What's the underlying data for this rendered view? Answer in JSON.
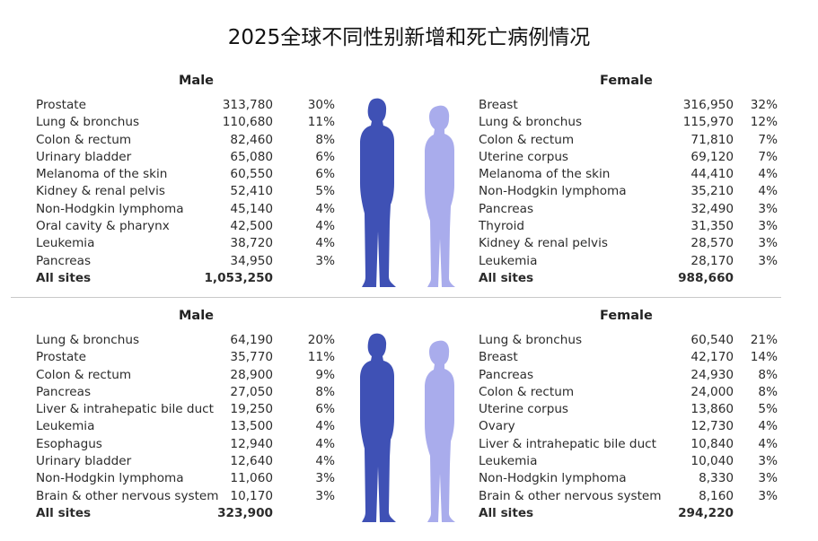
{
  "title": "2025全球不同性别新增和死亡病例情况",
  "colors": {
    "male": "#3f51b5",
    "female": "#a9acec"
  },
  "chart_data": [
    {
      "type": "table",
      "male": {
        "header": "Male",
        "rows": [
          {
            "site": "Prostate",
            "count": "313,780",
            "pct": "30%"
          },
          {
            "site": "Lung & bronchus",
            "count": "110,680",
            "pct": "11%"
          },
          {
            "site": "Colon & rectum",
            "count": "82,460",
            "pct": "8%"
          },
          {
            "site": "Urinary bladder",
            "count": "65,080",
            "pct": "6%"
          },
          {
            "site": "Melanoma of the skin",
            "count": "60,550",
            "pct": "6%"
          },
          {
            "site": "Kidney & renal pelvis",
            "count": "52,410",
            "pct": "5%"
          },
          {
            "site": "Non-Hodgkin lymphoma",
            "count": "45,140",
            "pct": "4%"
          },
          {
            "site": "Oral cavity & pharynx",
            "count": "42,500",
            "pct": "4%"
          },
          {
            "site": "Leukemia",
            "count": "38,720",
            "pct": "4%"
          },
          {
            "site": "Pancreas",
            "count": "34,950",
            "pct": "3%"
          }
        ],
        "total": {
          "site": "All sites",
          "count": "1,053,250"
        }
      },
      "female": {
        "header": "Female",
        "rows": [
          {
            "site": "Breast",
            "count": "316,950",
            "pct": "32%"
          },
          {
            "site": "Lung & bronchus",
            "count": "115,970",
            "pct": "12%"
          },
          {
            "site": "Colon & rectum",
            "count": "71,810",
            "pct": "7%"
          },
          {
            "site": "Uterine corpus",
            "count": "69,120",
            "pct": "7%"
          },
          {
            "site": "Melanoma of the skin",
            "count": "44,410",
            "pct": "4%"
          },
          {
            "site": "Non-Hodgkin lymphoma",
            "count": "35,210",
            "pct": "4%"
          },
          {
            "site": "Pancreas",
            "count": "32,490",
            "pct": "3%"
          },
          {
            "site": "Thyroid",
            "count": "31,350",
            "pct": "3%"
          },
          {
            "site": "Kidney & renal pelvis",
            "count": "28,570",
            "pct": "3%"
          },
          {
            "site": "Leukemia",
            "count": "28,170",
            "pct": "3%"
          }
        ],
        "total": {
          "site": "All sites",
          "count": "988,660"
        }
      }
    },
    {
      "type": "table",
      "male": {
        "header": "Male",
        "rows": [
          {
            "site": "Lung & bronchus",
            "count": "64,190",
            "pct": "20%"
          },
          {
            "site": "Prostate",
            "count": "35,770",
            "pct": "11%"
          },
          {
            "site": "Colon & rectum",
            "count": "28,900",
            "pct": "9%"
          },
          {
            "site": "Pancreas",
            "count": "27,050",
            "pct": "8%"
          },
          {
            "site": "Liver & intrahepatic bile duct",
            "count": "19,250",
            "pct": "6%"
          },
          {
            "site": "Leukemia",
            "count": "13,500",
            "pct": "4%"
          },
          {
            "site": "Esophagus",
            "count": "12,940",
            "pct": "4%"
          },
          {
            "site": "Urinary bladder",
            "count": "12,640",
            "pct": "4%"
          },
          {
            "site": "Non-Hodgkin lymphoma",
            "count": "11,060",
            "pct": "3%"
          },
          {
            "site": "Brain & other nervous system",
            "count": "10,170",
            "pct": "3%"
          }
        ],
        "total": {
          "site": "All sites",
          "count": "323,900"
        }
      },
      "female": {
        "header": "Female",
        "rows": [
          {
            "site": "Lung & bronchus",
            "count": "60,540",
            "pct": "21%"
          },
          {
            "site": "Breast",
            "count": "42,170",
            "pct": "14%"
          },
          {
            "site": "Pancreas",
            "count": "24,930",
            "pct": "8%"
          },
          {
            "site": "Colon & rectum",
            "count": "24,000",
            "pct": "8%"
          },
          {
            "site": "Uterine corpus",
            "count": "13,860",
            "pct": "5%"
          },
          {
            "site": "Ovary",
            "count": "12,730",
            "pct": "4%"
          },
          {
            "site": "Liver & intrahepatic bile duct",
            "count": "10,840",
            "pct": "4%"
          },
          {
            "site": "Leukemia",
            "count": "10,040",
            "pct": "3%"
          },
          {
            "site": "Non-Hodgkin lymphoma",
            "count": "8,330",
            "pct": "3%"
          },
          {
            "site": "Brain & other nervous system",
            "count": "8,160",
            "pct": "3%"
          }
        ],
        "total": {
          "site": "All sites",
          "count": "294,220"
        }
      }
    }
  ]
}
